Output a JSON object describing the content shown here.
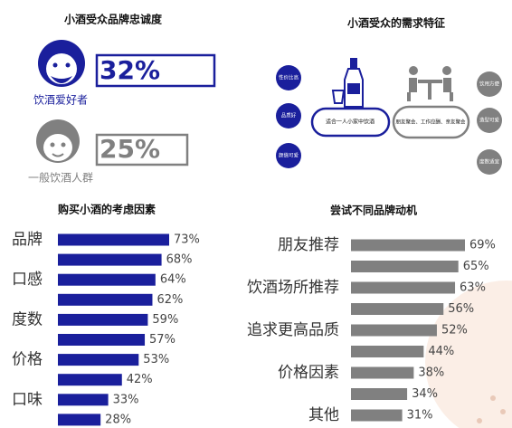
{
  "loyalty": {
    "title": "小酒受众品牌忠诚度",
    "groups": [
      {
        "label": "饮酒爱好者",
        "value_label": "32%",
        "color": "#1a1f9c"
      },
      {
        "label": "一般饮酒人群",
        "value_label": "25%",
        "color": "#808080"
      }
    ]
  },
  "needs": {
    "title": "小酒受众的需求特征",
    "left": [
      "性价比高",
      "品质好",
      "颜值可爱"
    ],
    "center_left": "适合一人小家中饮酒",
    "center_right": "朋友聚会、工作应酬、亲友聚会",
    "right": [
      "饮用方便",
      "造型可爱",
      "度数适宜"
    ]
  },
  "chart_data": [
    {
      "type": "bar",
      "orientation": "horizontal",
      "title": "购买小酒的考虑因素",
      "categories": [
        "品牌",
        null,
        "口感",
        null,
        "度数",
        null,
        "价格",
        null,
        "口味",
        null
      ],
      "values": [
        73,
        68,
        64,
        62,
        59,
        57,
        53,
        42,
        33,
        28
      ],
      "value_labels": [
        "73%",
        "68%",
        "64%",
        "62%",
        "59%",
        "57%",
        "53%",
        "42%",
        "33%",
        "28%"
      ],
      "color": "#1a1f9c"
    },
    {
      "type": "bar",
      "orientation": "horizontal",
      "title": "尝试不同品牌动机",
      "categories": [
        "朋友推荐",
        null,
        "饮酒场所推荐",
        null,
        "追求更高品质",
        null,
        "价格因素",
        null,
        "其他"
      ],
      "values": [
        69,
        65,
        63,
        56,
        52,
        44,
        38,
        34,
        31
      ],
      "value_labels": [
        "69%",
        "65%",
        "63%",
        "56%",
        "52%",
        "44%",
        "38%",
        "34%",
        "31%"
      ],
      "color": "#808080"
    }
  ]
}
